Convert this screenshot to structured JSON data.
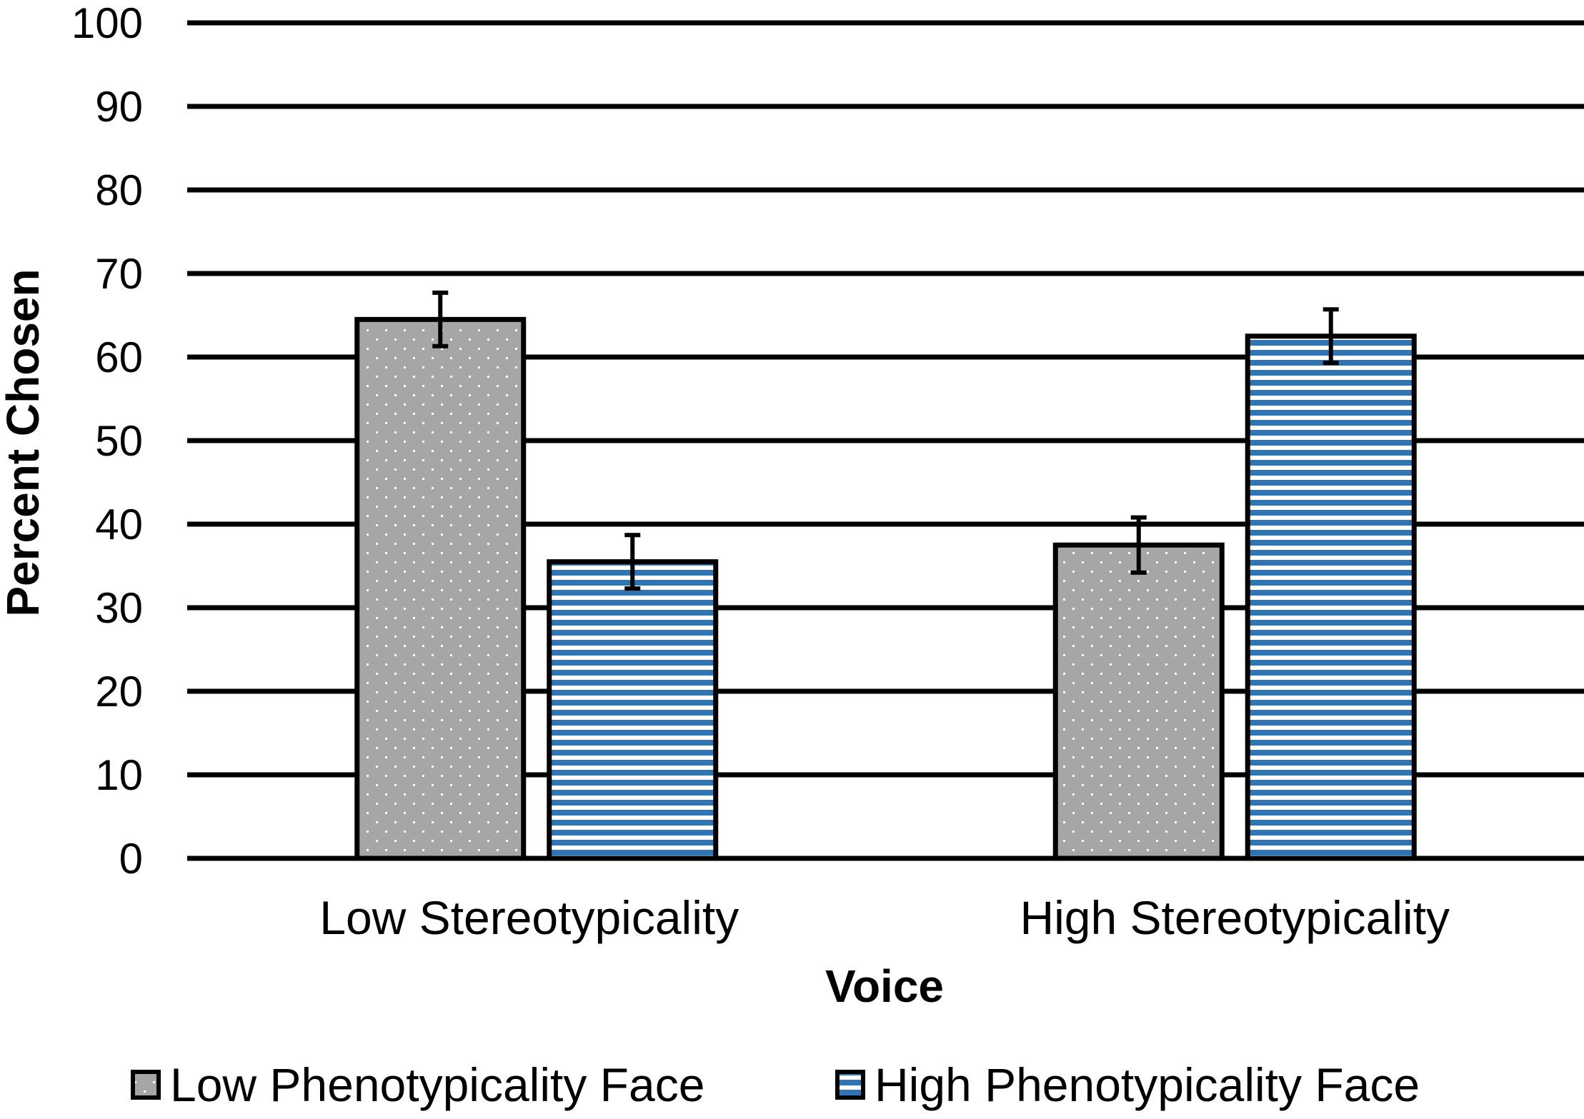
{
  "chart_data": {
    "type": "bar",
    "title": "",
    "xlabel": "Voice",
    "ylabel": "Percent Chosen",
    "ylim": [
      0,
      100
    ],
    "yticks": [
      0,
      10,
      20,
      30,
      40,
      50,
      60,
      70,
      80,
      90,
      100
    ],
    "yticklabels": [
      "0",
      "10",
      "20",
      "30",
      "40",
      "50",
      "60",
      "70",
      "80",
      "90",
      "100"
    ],
    "grid": true,
    "categories": [
      "Low Stereotypicality",
      "High Stereotypicality"
    ],
    "series": [
      {
        "name": "Low Phenotypicality Face",
        "values": [
          64.5,
          37.5
        ],
        "error": [
          3.2,
          3.3
        ],
        "pattern": "dots",
        "color": "#a6a6a6"
      },
      {
        "name": "High Phenotypicality Face",
        "values": [
          35.5,
          62.5
        ],
        "error": [
          3.2,
          3.2
        ],
        "pattern": "horizontal-stripes",
        "color": "#2e75b6"
      }
    ],
    "legend": {
      "position": "bottom"
    }
  }
}
